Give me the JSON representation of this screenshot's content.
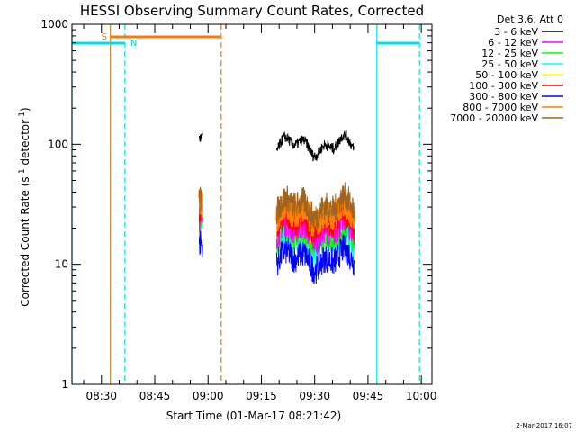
{
  "chart_data": {
    "type": "line",
    "title": "HESSI Observing Summary Count Rates, Corrected",
    "xlabel": "Start Time (01-Mar-17 08:21:42)",
    "ylabel_main": "Corrected Count Rate (s",
    "ylabel_sup": "-1",
    "ylabel_tail": " detector",
    "ylabel_end": ")",
    "x_tick_labels": [
      "08:30",
      "08:45",
      "09:00",
      "09:15",
      "09:30",
      "09:45",
      "10:00"
    ],
    "x_ticks_min": [
      510,
      525,
      540,
      555,
      570,
      585,
      600
    ],
    "xlim_min": [
      501.7,
      603.0
    ],
    "y_scale": "log",
    "ylim": [
      1,
      1000
    ],
    "y_tick_labels": [
      "1",
      "10",
      "100",
      "1000"
    ],
    "y_ticks": [
      1,
      10,
      100,
      1000
    ],
    "legend_title": "Det 3,6, Att 0",
    "series": [
      {
        "name": "3 - 6 keV",
        "color": "#000000",
        "level": 97,
        "first_level": 105
      },
      {
        "name": "6 - 12 keV",
        "color": "#ff00ff",
        "level": 19,
        "first_level": 22
      },
      {
        "name": "12 - 25 keV",
        "color": "#00ff00",
        "level": 17,
        "first_level": 21
      },
      {
        "name": "25 - 50 keV",
        "color": "#00ffff",
        "level": 15,
        "first_level": 19
      },
      {
        "name": "50 - 100 keV",
        "color": "#ffff00",
        "level": 18,
        "first_level": 20
      },
      {
        "name": "100 - 300 keV",
        "color": "#ff0000",
        "level": 22,
        "first_level": 26
      },
      {
        "name": "300 - 800 keV",
        "color": "#0000ff",
        "level": 11,
        "first_level": 14
      },
      {
        "name": "800 - 7000 keV",
        "color": "#ff8000",
        "level": 26,
        "first_level": 30
      },
      {
        "name": "7000 - 20000 keV",
        "color": "#a0641e",
        "level": 30,
        "first_level": 32
      }
    ],
    "segments_min": [
      [
        537.5,
        538.5
      ],
      [
        559.3,
        581.2
      ]
    ],
    "saa_label": "S",
    "night_label": "N",
    "saa_bar_min": [
      512.5,
      543.7
    ],
    "night_bars_min": [
      [
        501.7,
        516.6
      ],
      [
        587.5,
        599.5
      ]
    ],
    "cyan_vlines_min": [
      501.7,
      587.5
    ],
    "cyan_dash_vlines_min": [
      516.6,
      599.5
    ],
    "orange_vline_min": 512.5,
    "orange_dash_vline_min": 543.7,
    "date_stamp": "2-Mar-2017 16:07"
  }
}
